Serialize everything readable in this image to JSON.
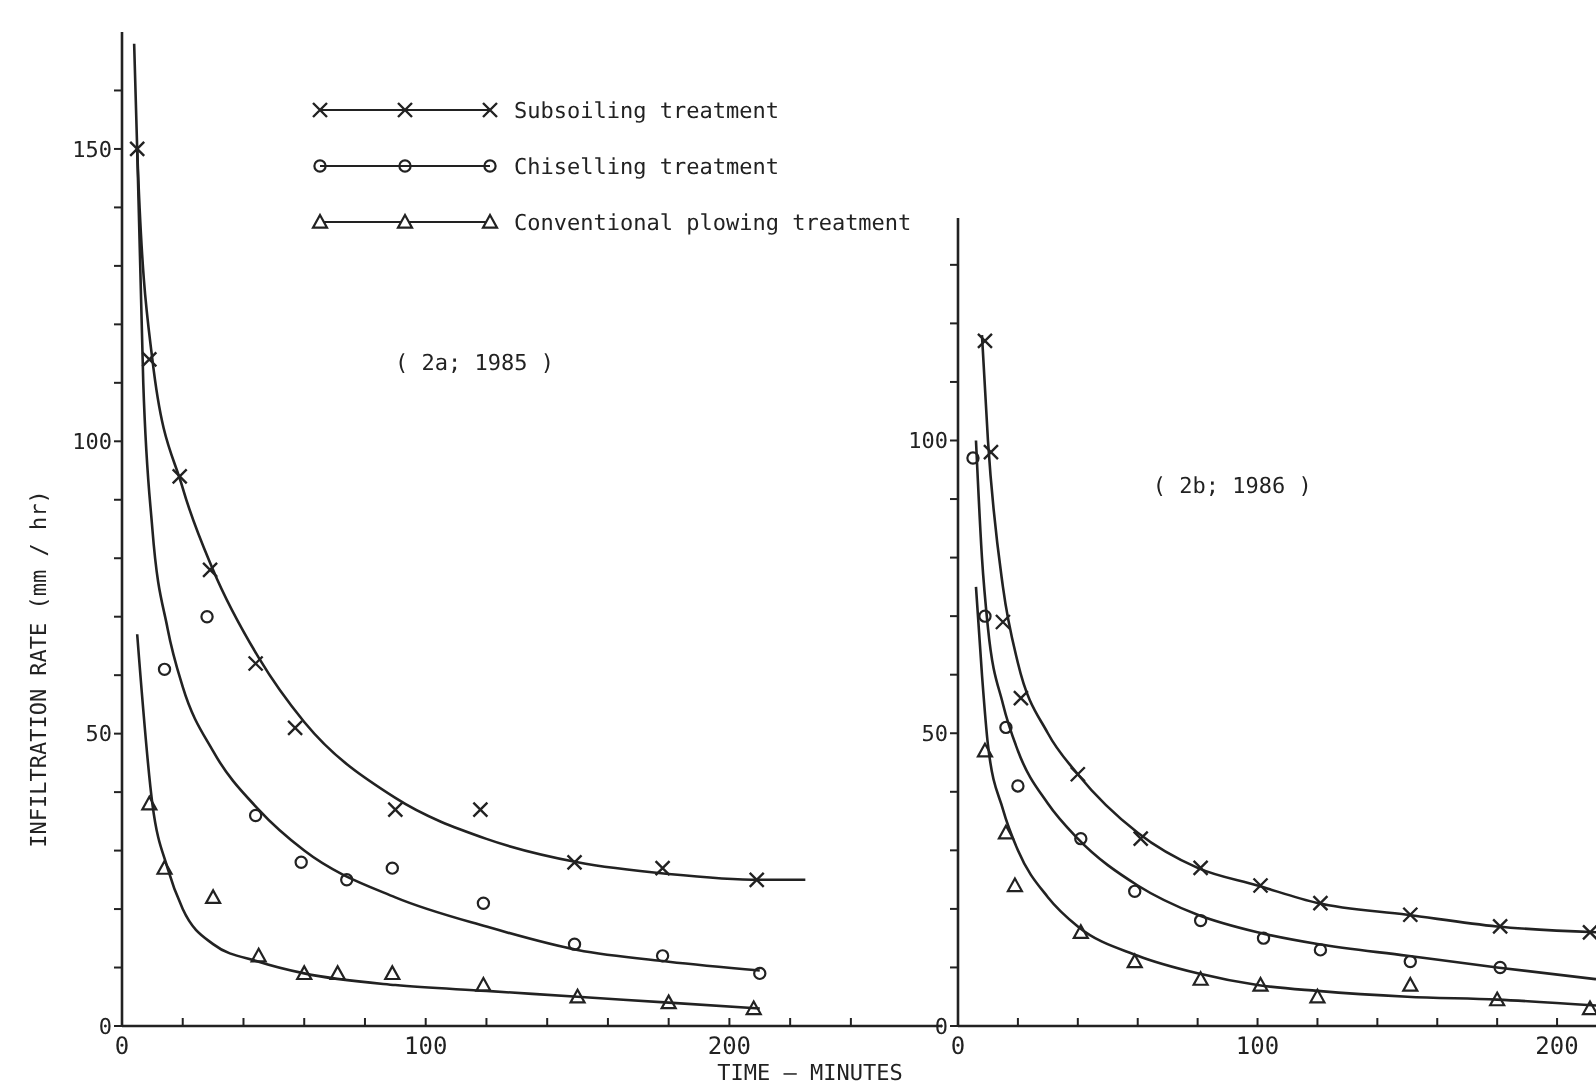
{
  "chart_data": [
    {
      "type": "scatter",
      "ylabel": "INFILTRATION RATE (mm / hr)",
      "xlabel": "TIME — MINUTES",
      "annotations": [
        "( 2a; 1985 )"
      ],
      "legend": "top",
      "xlim": [
        0,
        270
      ],
      "ylim": [
        0,
        170
      ],
      "xticks": [
        0,
        {
          "value": 20,
          "label": null
        },
        {
          "value": 40,
          "label": null
        },
        {
          "value": 60,
          "label": null
        },
        {
          "value": 80,
          "label": null
        },
        100,
        {
          "value": 120,
          "label": null
        },
        {
          "value": 140,
          "label": null
        },
        {
          "value": 160,
          "label": null
        },
        {
          "value": 180,
          "label": null
        },
        200,
        {
          "value": 220,
          "label": null
        },
        {
          "value": 240,
          "label": null
        }
      ],
      "yticks": [
        0,
        {
          "value": 10,
          "label": null
        },
        {
          "value": 20,
          "label": null
        },
        {
          "value": 30,
          "label": null
        },
        {
          "value": 40,
          "label": null
        },
        50,
        {
          "value": 60,
          "label": null
        },
        {
          "value": 70,
          "label": null
        },
        {
          "value": 80,
          "label": null
        },
        {
          "value": 90,
          "label": null
        },
        100,
        {
          "value": 110,
          "label": null
        },
        {
          "value": 120,
          "label": null
        },
        {
          "value": 130,
          "label": null
        },
        {
          "value": 140,
          "label": null
        },
        150,
        {
          "value": 160,
          "label": null
        }
      ],
      "series": [
        {
          "name": "Subsoiling treatment",
          "type": "scatter",
          "marker": "cross",
          "color": "#222222",
          "x": [
            5,
            9,
            19,
            29,
            44,
            57,
            90,
            118,
            149,
            178,
            209
          ],
          "values": [
            150,
            114,
            94,
            78,
            62,
            51,
            37,
            37,
            28,
            27,
            25
          ]
        },
        {
          "name": "Chiselling treatment",
          "type": "scatter",
          "marker": "circle",
          "color": "#222222",
          "x": [
            14,
            28,
            44,
            59,
            74,
            89,
            119,
            149,
            178,
            210
          ],
          "values": [
            61,
            70,
            36,
            28,
            25,
            27,
            21,
            14,
            12,
            9
          ]
        },
        {
          "name": "Conventional plowing treatment",
          "type": "scatter",
          "marker": "triangle",
          "color": "#222222",
          "x": [
            9,
            14,
            30,
            45,
            60,
            71,
            89,
            119,
            150,
            180,
            208
          ],
          "values": [
            38,
            27,
            22,
            12,
            9,
            9,
            9,
            7,
            5,
            4,
            3
          ]
        },
        {
          "type": "line",
          "color": "#222222",
          "x": [
            4,
            5,
            10,
            20,
            30,
            45,
            60,
            90,
            120,
            150,
            180,
            210,
            225
          ],
          "values": [
            168,
            150,
            114,
            92,
            78,
            63,
            52,
            39,
            32,
            28,
            26,
            25,
            25
          ]
        },
        {
          "type": "line",
          "color": "#222222",
          "x": [
            5,
            7,
            10,
            15,
            20,
            30,
            45,
            60,
            90,
            120,
            150,
            180,
            210
          ],
          "values": [
            150,
            110,
            85,
            68,
            58,
            47,
            37,
            30,
            22,
            17,
            13,
            11,
            9.5
          ]
        },
        {
          "type": "line",
          "color": "#222222",
          "x": [
            5,
            10,
            15,
            20,
            30,
            45,
            60,
            90,
            120,
            150,
            180,
            210
          ],
          "values": [
            67,
            38,
            27,
            20,
            14,
            11,
            9,
            7,
            6,
            5,
            4,
            3
          ]
        }
      ]
    },
    {
      "type": "scatter",
      "annotations": [
        "( 2b; 1986 )"
      ],
      "xlim": [
        0,
        213
      ],
      "ylim": [
        0,
        138
      ],
      "xticks": [
        0,
        {
          "value": 20,
          "label": null
        },
        {
          "value": 40,
          "label": null
        },
        {
          "value": 60,
          "label": null
        },
        {
          "value": 80,
          "label": null
        },
        100,
        {
          "value": 120,
          "label": null
        },
        {
          "value": 140,
          "label": null
        },
        {
          "value": 160,
          "label": null
        },
        {
          "value": 180,
          "label": null
        },
        200
      ],
      "yticks": [
        0,
        {
          "value": 10,
          "label": null
        },
        {
          "value": 20,
          "label": null
        },
        {
          "value": 30,
          "label": null
        },
        {
          "value": 40,
          "label": null
        },
        50,
        {
          "value": 60,
          "label": null
        },
        {
          "value": 70,
          "label": null
        },
        {
          "value": 80,
          "label": null
        },
        {
          "value": 90,
          "label": null
        },
        100,
        {
          "value": 110,
          "label": null
        },
        {
          "value": 120,
          "label": null
        },
        {
          "value": 130,
          "label": null
        }
      ],
      "series": [
        {
          "type": "scatter",
          "marker": "cross",
          "color": "#222222",
          "x": [
            9,
            11,
            15,
            21,
            40,
            61,
            81,
            101,
            121,
            151,
            181,
            211
          ],
          "values": [
            117,
            98,
            69,
            56,
            43,
            32,
            27,
            24,
            21,
            19,
            17,
            16
          ]
        },
        {
          "type": "scatter",
          "marker": "circle",
          "color": "#222222",
          "x": [
            5,
            9,
            16,
            20,
            41,
            59,
            81,
            102,
            121,
            151,
            181
          ],
          "values": [
            97,
            70,
            51,
            41,
            32,
            23,
            18,
            15,
            13,
            11,
            10
          ]
        },
        {
          "type": "scatter",
          "marker": "triangle",
          "color": "#222222",
          "x": [
            9,
            16,
            19,
            41,
            59,
            81,
            101,
            120,
            151,
            180,
            211
          ],
          "values": [
            47,
            33,
            24,
            16,
            11,
            8,
            7,
            5,
            7,
            4.5,
            3
          ]
        },
        {
          "type": "line",
          "color": "#222222",
          "x": [
            8,
            10,
            15,
            20,
            30,
            40,
            60,
            80,
            100,
            120,
            150,
            180,
            213
          ],
          "values": [
            118,
            100,
            75,
            62,
            50,
            43,
            33,
            27,
            24,
            21,
            19,
            17,
            16
          ]
        },
        {
          "type": "line",
          "color": "#222222",
          "x": [
            6,
            8,
            10,
            15,
            20,
            30,
            40,
            60,
            80,
            100,
            120,
            150,
            180,
            213
          ],
          "values": [
            100,
            80,
            68,
            55,
            47,
            38,
            32,
            24,
            19,
            16,
            14,
            12,
            10,
            8
          ]
        },
        {
          "type": "line",
          "color": "#222222",
          "x": [
            6,
            8,
            10,
            15,
            20,
            30,
            40,
            60,
            80,
            100,
            120,
            150,
            180,
            213
          ],
          "values": [
            75,
            60,
            48,
            37,
            30,
            22,
            17,
            12,
            9,
            7,
            6,
            5,
            4.5,
            3.5
          ]
        }
      ]
    }
  ]
}
